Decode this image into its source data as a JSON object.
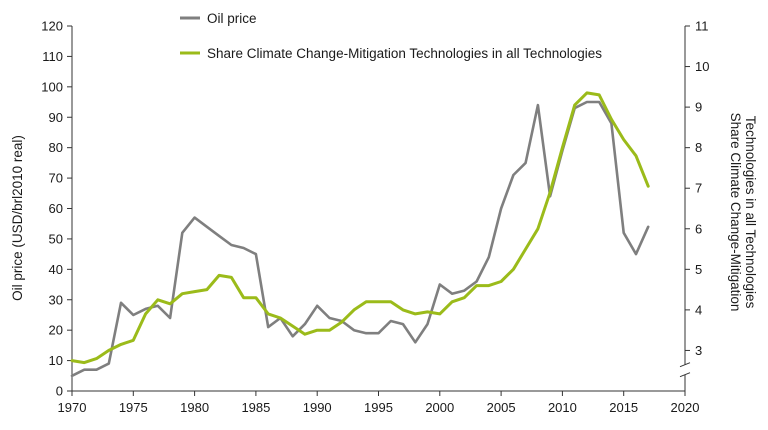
{
  "chart_data": {
    "type": "line",
    "legend_position": "top",
    "grid": false,
    "x": {
      "range": [
        1970,
        2020
      ],
      "ticks": [
        1970,
        1975,
        1980,
        1985,
        1990,
        1995,
        2000,
        2005,
        2010,
        2015,
        2020
      ]
    },
    "y_left": {
      "label": "Oil price (USD/brl2010 real)",
      "range": [
        0,
        120
      ],
      "ticks": [
        0,
        10,
        20,
        30,
        40,
        50,
        60,
        70,
        80,
        90,
        100,
        110,
        120
      ]
    },
    "y_right": {
      "label_line1": "Share Climate Change-Mitigation",
      "label_line2": "Technologies in all Technologies",
      "range": [
        2,
        11
      ],
      "broken_below": 2.5,
      "ticks": [
        3,
        4,
        5,
        6,
        7,
        8,
        9,
        10,
        11
      ]
    },
    "series": [
      {
        "name": "Oil price",
        "axis": "left",
        "color": "#7f7f7f",
        "points": [
          [
            1970,
            5
          ],
          [
            1971,
            7
          ],
          [
            1972,
            7
          ],
          [
            1973,
            9
          ],
          [
            1974,
            29
          ],
          [
            1975,
            25
          ],
          [
            1976,
            27
          ],
          [
            1977,
            28
          ],
          [
            1978,
            24
          ],
          [
            1979,
            52
          ],
          [
            1980,
            57
          ],
          [
            1981,
            54
          ],
          [
            1982,
            51
          ],
          [
            1983,
            48
          ],
          [
            1984,
            47
          ],
          [
            1985,
            45
          ],
          [
            1986,
            21
          ],
          [
            1987,
            24
          ],
          [
            1988,
            18
          ],
          [
            1989,
            22
          ],
          [
            1990,
            28
          ],
          [
            1991,
            24
          ],
          [
            1992,
            23
          ],
          [
            1993,
            20
          ],
          [
            1994,
            19
          ],
          [
            1995,
            19
          ],
          [
            1996,
            23
          ],
          [
            1997,
            22
          ],
          [
            1998,
            16
          ],
          [
            1999,
            22
          ],
          [
            2000,
            35
          ],
          [
            2001,
            32
          ],
          [
            2002,
            33
          ],
          [
            2003,
            36
          ],
          [
            2004,
            44
          ],
          [
            2005,
            60
          ],
          [
            2006,
            71
          ],
          [
            2007,
            75
          ],
          [
            2008,
            94
          ],
          [
            2009,
            64
          ],
          [
            2010,
            79
          ],
          [
            2011,
            93
          ],
          [
            2012,
            95
          ],
          [
            2013,
            95
          ],
          [
            2014,
            88
          ],
          [
            2015,
            52
          ],
          [
            2016,
            45
          ],
          [
            2017,
            54
          ]
        ]
      },
      {
        "name": "Share Climate Change-Mitigation Technologies in all Technologies",
        "axis": "right",
        "color": "#9bbb1a",
        "points": [
          [
            1970,
            2.75
          ],
          [
            1971,
            2.7
          ],
          [
            1972,
            2.8
          ],
          [
            1973,
            3.0
          ],
          [
            1974,
            3.15
          ],
          [
            1975,
            3.25
          ],
          [
            1976,
            3.9
          ],
          [
            1977,
            4.25
          ],
          [
            1978,
            4.15
          ],
          [
            1979,
            4.4
          ],
          [
            1980,
            4.45
          ],
          [
            1981,
            4.5
          ],
          [
            1982,
            4.85
          ],
          [
            1983,
            4.8
          ],
          [
            1984,
            4.3
          ],
          [
            1985,
            4.3
          ],
          [
            1986,
            3.9
          ],
          [
            1987,
            3.8
          ],
          [
            1988,
            3.6
          ],
          [
            1989,
            3.4
          ],
          [
            1990,
            3.5
          ],
          [
            1991,
            3.5
          ],
          [
            1992,
            3.7
          ],
          [
            1993,
            4.0
          ],
          [
            1994,
            4.2
          ],
          [
            1995,
            4.2
          ],
          [
            1996,
            4.2
          ],
          [
            1997,
            4.0
          ],
          [
            1998,
            3.9
          ],
          [
            1999,
            3.95
          ],
          [
            2000,
            3.9
          ],
          [
            2001,
            4.2
          ],
          [
            2002,
            4.3
          ],
          [
            2003,
            4.6
          ],
          [
            2004,
            4.6
          ],
          [
            2005,
            4.7
          ],
          [
            2006,
            5.0
          ],
          [
            2007,
            5.5
          ],
          [
            2008,
            6.0
          ],
          [
            2009,
            6.9
          ],
          [
            2010,
            8.0
          ],
          [
            2011,
            9.05
          ],
          [
            2012,
            9.35
          ],
          [
            2013,
            9.3
          ],
          [
            2014,
            8.7
          ],
          [
            2015,
            8.2
          ],
          [
            2016,
            7.8
          ],
          [
            2017,
            7.05
          ]
        ]
      }
    ]
  }
}
